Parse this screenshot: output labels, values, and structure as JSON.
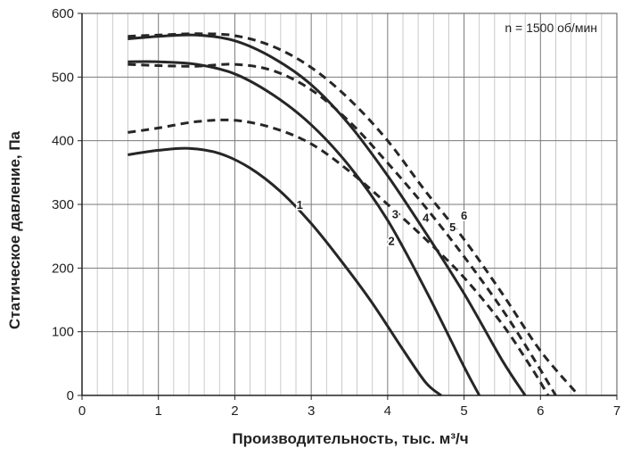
{
  "chart_data": {
    "type": "line",
    "title": "",
    "annotation": "n = 1500 об/мин",
    "xlabel": "Производительность, тыс. м³/ч",
    "ylabel": "Статическое давление, Па",
    "xlim": [
      0,
      7
    ],
    "ylim": [
      0,
      600
    ],
    "x_minor_step": 0.2,
    "x_ticks": [
      0,
      1,
      2,
      3,
      4,
      5,
      6,
      7
    ],
    "y_ticks": [
      0,
      100,
      200,
      300,
      400,
      500,
      600
    ],
    "x_tick_labels": [
      "0",
      "1",
      "2",
      "3",
      "4",
      "5",
      "6",
      "7"
    ],
    "y_tick_labels": [
      "0",
      "100",
      "200",
      "300",
      "400",
      "500",
      "600"
    ],
    "grid": true,
    "series": [
      {
        "name": "1",
        "style": "solid",
        "x": [
          0.6,
          1.0,
          1.4,
          1.8,
          2.2,
          2.6,
          3.0,
          3.4,
          3.8,
          4.2,
          4.5,
          4.7
        ],
        "y": [
          378,
          385,
          388,
          380,
          357,
          320,
          270,
          210,
          145,
          72,
          20,
          0
        ]
      },
      {
        "name": "2",
        "style": "solid",
        "x": [
          0.6,
          1.0,
          1.5,
          2.0,
          2.5,
          3.0,
          3.5,
          4.0,
          4.5,
          5.0,
          5.2
        ],
        "y": [
          524,
          524,
          520,
          505,
          472,
          425,
          360,
          275,
          165,
          45,
          0
        ]
      },
      {
        "name": "3",
        "style": "dashed",
        "x": [
          0.6,
          1.0,
          1.5,
          2.0,
          2.5,
          3.0,
          3.5,
          4.0,
          4.5,
          5.0,
          5.5,
          5.9,
          6.1
        ],
        "y": [
          413,
          420,
          430,
          432,
          420,
          395,
          352,
          300,
          245,
          185,
          112,
          40,
          0
        ]
      },
      {
        "name": "4",
        "style": "solid",
        "x": [
          0.6,
          1.0,
          1.5,
          2.0,
          2.5,
          3.0,
          3.5,
          4.0,
          4.5,
          5.0,
          5.5,
          5.8
        ],
        "y": [
          560,
          564,
          566,
          557,
          530,
          488,
          425,
          345,
          255,
          160,
          55,
          0
        ]
      },
      {
        "name": "5",
        "style": "dashed",
        "x": [
          0.6,
          1.0,
          1.5,
          2.0,
          2.5,
          3.0,
          3.5,
          4.0,
          4.5,
          5.0,
          5.5,
          5.9,
          6.2
        ],
        "y": [
          520,
          518,
          517,
          520,
          510,
          480,
          430,
          365,
          295,
          218,
          135,
          60,
          0
        ]
      },
      {
        "name": "6",
        "style": "dashed",
        "x": [
          0.6,
          1.0,
          1.5,
          2.0,
          2.5,
          3.0,
          3.5,
          4.0,
          4.5,
          5.0,
          5.5,
          6.0,
          6.5
        ],
        "y": [
          564,
          566,
          568,
          565,
          548,
          515,
          465,
          400,
          320,
          245,
          160,
          70,
          0
        ]
      }
    ],
    "curve_labels": [
      {
        "text": "1",
        "x": 2.85,
        "y": 300
      },
      {
        "text": "2",
        "x": 4.05,
        "y": 243
      },
      {
        "text": "3",
        "x": 4.1,
        "y": 285
      },
      {
        "text": "4",
        "x": 4.5,
        "y": 280
      },
      {
        "text": "5",
        "x": 4.85,
        "y": 265
      },
      {
        "text": "6",
        "x": 5.0,
        "y": 283
      }
    ]
  }
}
